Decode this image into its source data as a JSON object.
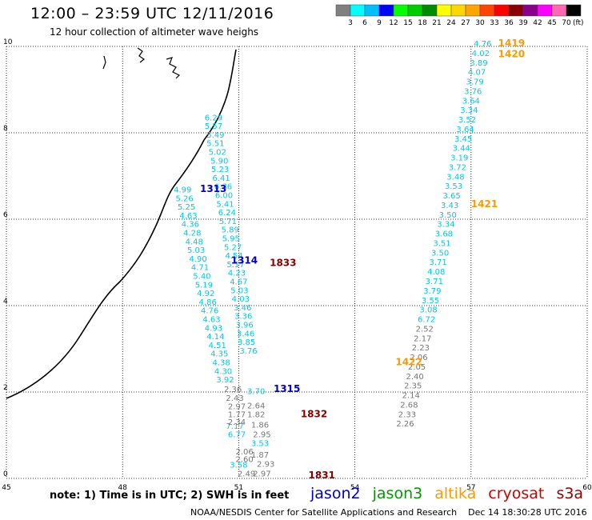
{
  "header": {
    "title": "12:00 – 23:59 UTC 12/11/2016",
    "subtitle": "12 hour collection of altimeter wave heighs"
  },
  "colorbar": {
    "unit_label": "(ft)",
    "ticks": [
      "3",
      "6",
      "9",
      "12",
      "15",
      "18",
      "21",
      "24",
      "27",
      "30",
      "33",
      "36",
      "39",
      "42",
      "45",
      "70"
    ],
    "colors": [
      "#808080",
      "#00ffff",
      "#00bfff",
      "#0000ff",
      "#00ff00",
      "#00cd00",
      "#008b00",
      "#ffff00",
      "#ffd700",
      "#ffa500",
      "#ff4500",
      "#ff0000",
      "#8b0000",
      "#8b008b",
      "#ff00ff",
      "#ff69b4",
      "#000000"
    ]
  },
  "axes": {
    "x_ticks": [
      "45",
      "48",
      "51",
      "54",
      "57",
      "60"
    ],
    "y_ticks": [
      "0",
      "2",
      "4",
      "6",
      "8",
      "10"
    ],
    "xlim": [
      45,
      60
    ],
    "ylim": [
      0,
      10
    ]
  },
  "footer": {
    "note": "note: 1) Time is in UTC; 2) SWH is in feet",
    "satellites": [
      {
        "name": "jason2",
        "color": "#0000cc"
      },
      {
        "name": "jason3",
        "color": "#009900"
      },
      {
        "name": "altika",
        "color": "#ff9900"
      },
      {
        "name": "cryosat",
        "color": "#cc0000"
      },
      {
        "name": "s3a",
        "color": "#990000"
      }
    ],
    "credit": "NOAA/NESDIS Center for Satellite Applications and Research    Dec 14 18:30:28 UTC 2016"
  },
  "time_labels": [
    {
      "text": "1313",
      "lon": 50.0,
      "lat": 6.63,
      "color": "#0000cc"
    },
    {
      "text": "1314",
      "lon": 50.8,
      "lat": 4.97,
      "color": "#0000cc"
    },
    {
      "text": "1315",
      "lon": 51.9,
      "lat": 2.0,
      "color": "#0000cc"
    },
    {
      "text": "1833",
      "lon": 51.8,
      "lat": 4.92,
      "color": "#880000"
    },
    {
      "text": "1832",
      "lon": 52.6,
      "lat": 1.42,
      "color": "#880000"
    },
    {
      "text": "1831",
      "lon": 52.8,
      "lat": 0.0,
      "color": "#880000"
    },
    {
      "text": "1419",
      "lon": 57.7,
      "lat": 10.0,
      "color": "#ff9900"
    },
    {
      "text": "1420",
      "lon": 57.7,
      "lat": 9.75,
      "color": "#ff9900"
    },
    {
      "text": "1421",
      "lon": 57.0,
      "lat": 6.28,
      "color": "#ff9900"
    },
    {
      "text": "1422",
      "lon": 55.05,
      "lat": 2.62,
      "color": "#ff9900"
    }
  ],
  "tracks": [
    {
      "name": "jason2",
      "color": "#00c8e6",
      "points": [
        {
          "lon": 50.35,
          "lat": 8.29,
          "v": "6.29"
        },
        {
          "lon": 50.35,
          "lat": 8.09,
          "v": "5.57"
        },
        {
          "lon": 50.4,
          "lat": 7.89,
          "v": "5.49"
        },
        {
          "lon": 50.4,
          "lat": 7.69,
          "v": "5.51"
        },
        {
          "lon": 50.45,
          "lat": 7.49,
          "v": "5.02"
        },
        {
          "lon": 50.5,
          "lat": 7.29,
          "v": "5.90"
        },
        {
          "lon": 50.52,
          "lat": 7.09,
          "v": "5.23"
        },
        {
          "lon": 50.55,
          "lat": 6.89,
          "v": "6.41"
        },
        {
          "lon": 50.6,
          "lat": 6.69,
          "v": "6.36"
        },
        {
          "lon": 50.62,
          "lat": 6.49,
          "v": "6.00"
        },
        {
          "lon": 50.65,
          "lat": 6.29,
          "v": "5.41"
        },
        {
          "lon": 50.7,
          "lat": 6.09,
          "v": "6.24"
        },
        {
          "lon": 50.72,
          "lat": 5.89,
          "v": "5.71"
        },
        {
          "lon": 50.78,
          "lat": 5.69,
          "v": "5.89"
        },
        {
          "lon": 50.8,
          "lat": 5.49,
          "v": "5.95"
        },
        {
          "lon": 50.85,
          "lat": 5.29,
          "v": "5.27"
        },
        {
          "lon": 50.88,
          "lat": 5.09,
          "v": "4.54"
        },
        {
          "lon": 50.92,
          "lat": 4.89,
          "v": "5.17"
        },
        {
          "lon": 50.95,
          "lat": 4.69,
          "v": "4.23"
        },
        {
          "lon": 51.0,
          "lat": 4.49,
          "v": "4.67"
        },
        {
          "lon": 51.02,
          "lat": 4.29,
          "v": "5.03"
        },
        {
          "lon": 51.05,
          "lat": 4.09,
          "v": "4.03"
        },
        {
          "lon": 51.1,
          "lat": 3.89,
          "v": "3.46"
        },
        {
          "lon": 51.12,
          "lat": 3.69,
          "v": "3.36"
        },
        {
          "lon": 51.15,
          "lat": 3.49,
          "v": "3.96"
        },
        {
          "lon": 51.18,
          "lat": 3.29,
          "v": "3.46"
        },
        {
          "lon": 51.2,
          "lat": 3.09,
          "v": "3.85"
        },
        {
          "lon": 51.25,
          "lat": 2.89,
          "v": "3.76"
        },
        {
          "lon": 49.55,
          "lat": 6.62,
          "v": "4.99"
        },
        {
          "lon": 49.6,
          "lat": 6.42,
          "v": "5.26"
        },
        {
          "lon": 49.65,
          "lat": 6.22,
          "v": "5.25"
        },
        {
          "lon": 49.7,
          "lat": 6.02,
          "v": "4.63"
        },
        {
          "lon": 49.75,
          "lat": 5.82,
          "v": "4.36"
        },
        {
          "lon": 49.8,
          "lat": 5.62,
          "v": "4.28"
        },
        {
          "lon": 49.85,
          "lat": 5.42,
          "v": "4.48"
        },
        {
          "lon": 49.9,
          "lat": 5.22,
          "v": "5.03"
        },
        {
          "lon": 49.95,
          "lat": 5.02,
          "v": "4.90"
        },
        {
          "lon": 50.0,
          "lat": 4.82,
          "v": "4.71"
        },
        {
          "lon": 50.05,
          "lat": 4.62,
          "v": "5.40"
        },
        {
          "lon": 50.1,
          "lat": 4.42,
          "v": "5.19"
        },
        {
          "lon": 50.15,
          "lat": 4.22,
          "v": "4.92"
        },
        {
          "lon": 50.2,
          "lat": 4.02,
          "v": "4.86"
        },
        {
          "lon": 50.25,
          "lat": 3.82,
          "v": "4.76"
        },
        {
          "lon": 50.3,
          "lat": 3.62,
          "v": "4.63"
        },
        {
          "lon": 50.35,
          "lat": 3.42,
          "v": "4.93"
        },
        {
          "lon": 50.4,
          "lat": 3.22,
          "v": "4.14"
        },
        {
          "lon": 50.45,
          "lat": 3.02,
          "v": "4.51"
        },
        {
          "lon": 50.5,
          "lat": 2.82,
          "v": "4.35"
        },
        {
          "lon": 50.55,
          "lat": 2.62,
          "v": "4.38"
        },
        {
          "lon": 50.6,
          "lat": 2.42,
          "v": "4.30"
        },
        {
          "lon": 50.65,
          "lat": 2.22,
          "v": "3.92"
        },
        {
          "lon": 50.9,
          "lat": 1.15,
          "v": "7.17"
        },
        {
          "lon": 50.95,
          "lat": 0.95,
          "v": "6.77"
        },
        {
          "lon": 51.55,
          "lat": 0.75,
          "v": "3.53"
        },
        {
          "lon": 51.0,
          "lat": 0.25,
          "v": "3.58"
        },
        {
          "lon": 51.45,
          "lat": 1.95,
          "v": "3.70"
        }
      ]
    },
    {
      "name": "s3a",
      "color": "#777777",
      "points": [
        {
          "lon": 50.85,
          "lat": 2.0,
          "v": "2.36"
        },
        {
          "lon": 50.9,
          "lat": 1.8,
          "v": "2.43"
        },
        {
          "lon": 50.95,
          "lat": 1.6,
          "v": "2.97"
        },
        {
          "lon": 51.45,
          "lat": 1.62,
          "v": "2.64"
        },
        {
          "lon": 50.95,
          "lat": 1.42,
          "v": "1.77"
        },
        {
          "lon": 51.45,
          "lat": 1.42,
          "v": "1.82"
        },
        {
          "lon": 50.95,
          "lat": 1.24,
          "v": "2.34"
        },
        {
          "lon": 51.55,
          "lat": 1.18,
          "v": "1.86"
        },
        {
          "lon": 51.6,
          "lat": 0.95,
          "v": "2.95"
        },
        {
          "lon": 51.15,
          "lat": 0.56,
          "v": "2.06"
        },
        {
          "lon": 51.15,
          "lat": 0.38,
          "v": "2.60"
        },
        {
          "lon": 51.55,
          "lat": 0.48,
          "v": "1.87"
        },
        {
          "lon": 51.7,
          "lat": 0.27,
          "v": "2.93"
        },
        {
          "lon": 51.2,
          "lat": 0.05,
          "v": "2.49"
        },
        {
          "lon": 51.6,
          "lat": 0.05,
          "v": "2.97"
        }
      ]
    },
    {
      "name": "altika",
      "color": "#00c8e6",
      "points": [
        {
          "lon": 57.3,
          "lat": 10.0,
          "v": "4.76"
        },
        {
          "lon": 57.25,
          "lat": 9.78,
          "v": "4.02"
        },
        {
          "lon": 57.2,
          "lat": 9.56,
          "v": "3.89"
        },
        {
          "lon": 57.15,
          "lat": 9.34,
          "v": "4.07"
        },
        {
          "lon": 57.1,
          "lat": 9.12,
          "v": "3.79"
        },
        {
          "lon": 57.05,
          "lat": 8.9,
          "v": "3.76"
        },
        {
          "lon": 57.0,
          "lat": 8.68,
          "v": "3.64"
        },
        {
          "lon": 56.95,
          "lat": 8.46,
          "v": "3.34"
        },
        {
          "lon": 56.9,
          "lat": 8.24,
          "v": "3.52"
        },
        {
          "lon": 56.85,
          "lat": 8.02,
          "v": "3.64"
        },
        {
          "lon": 56.8,
          "lat": 7.8,
          "v": "3.45"
        },
        {
          "lon": 56.75,
          "lat": 7.58,
          "v": "3.44"
        },
        {
          "lon": 56.7,
          "lat": 7.36,
          "v": "3.19"
        },
        {
          "lon": 56.65,
          "lat": 7.14,
          "v": "3.72"
        },
        {
          "lon": 56.6,
          "lat": 6.92,
          "v": "3.48"
        },
        {
          "lon": 56.55,
          "lat": 6.7,
          "v": "3.53"
        },
        {
          "lon": 56.5,
          "lat": 6.48,
          "v": "3.65"
        },
        {
          "lon": 56.45,
          "lat": 6.26,
          "v": "3.43"
        },
        {
          "lon": 56.4,
          "lat": 6.04,
          "v": "3.50"
        },
        {
          "lon": 56.35,
          "lat": 5.82,
          "v": "3.34"
        },
        {
          "lon": 56.3,
          "lat": 5.6,
          "v": "3.68"
        },
        {
          "lon": 56.25,
          "lat": 5.38,
          "v": "3.51"
        },
        {
          "lon": 56.2,
          "lat": 5.16,
          "v": "3.50"
        },
        {
          "lon": 56.15,
          "lat": 4.94,
          "v": "3.71"
        },
        {
          "lon": 56.1,
          "lat": 4.72,
          "v": "4.08"
        },
        {
          "lon": 56.05,
          "lat": 4.5,
          "v": "3.71"
        },
        {
          "lon": 56.0,
          "lat": 4.28,
          "v": "3.79"
        },
        {
          "lon": 55.95,
          "lat": 4.06,
          "v": "3.55"
        },
        {
          "lon": 55.9,
          "lat": 3.84,
          "v": "3.08"
        },
        {
          "lon": 55.85,
          "lat": 3.62,
          "v": "6.72"
        }
      ]
    },
    {
      "name": "altika-low",
      "color": "#777777",
      "points": [
        {
          "lon": 55.8,
          "lat": 3.4,
          "v": "2.52"
        },
        {
          "lon": 55.75,
          "lat": 3.18,
          "v": "2.17"
        },
        {
          "lon": 55.7,
          "lat": 2.96,
          "v": "2.23"
        },
        {
          "lon": 55.65,
          "lat": 2.74,
          "v": "2.06"
        },
        {
          "lon": 55.6,
          "lat": 2.52,
          "v": "2.05"
        },
        {
          "lon": 55.55,
          "lat": 2.3,
          "v": "2.40"
        },
        {
          "lon": 55.5,
          "lat": 2.08,
          "v": "2.35"
        },
        {
          "lon": 55.45,
          "lat": 1.86,
          "v": "2.14"
        },
        {
          "lon": 55.4,
          "lat": 1.64,
          "v": "2.68"
        },
        {
          "lon": 55.35,
          "lat": 1.42,
          "v": "2.33"
        },
        {
          "lon": 55.3,
          "lat": 1.2,
          "v": "2.26"
        }
      ]
    }
  ]
}
